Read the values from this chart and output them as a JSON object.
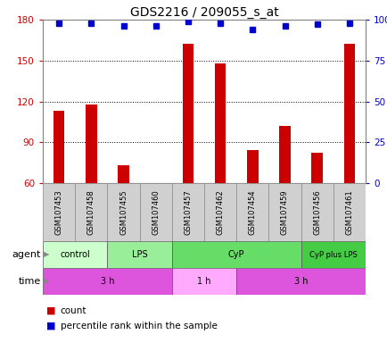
{
  "title": "GDS2216 / 209055_s_at",
  "samples": [
    "GSM107453",
    "GSM107458",
    "GSM107455",
    "GSM107460",
    "GSM107457",
    "GSM107462",
    "GSM107454",
    "GSM107459",
    "GSM107456",
    "GSM107461"
  ],
  "count_values": [
    113,
    118,
    73,
    60,
    162,
    148,
    84,
    102,
    82,
    162
  ],
  "percentile_values": [
    98,
    98,
    96,
    96,
    99,
    98,
    94,
    96,
    97,
    98
  ],
  "ylim_left": [
    60,
    180
  ],
  "ylim_right": [
    0,
    100
  ],
  "yticks_left": [
    60,
    90,
    120,
    150,
    180
  ],
  "yticks_right": [
    0,
    25,
    50,
    75,
    100
  ],
  "ytick_labels_right": [
    "0",
    "25",
    "50",
    "75",
    "100%"
  ],
  "bar_color": "#cc0000",
  "dot_color": "#0000cc",
  "agent_groups": [
    {
      "label": "control",
      "start": 0,
      "end": 2,
      "color": "#ccffcc"
    },
    {
      "label": "LPS",
      "start": 2,
      "end": 4,
      "color": "#99ee99"
    },
    {
      "label": "CyP",
      "start": 4,
      "end": 8,
      "color": "#66dd66"
    },
    {
      "label": "CyP plus LPS",
      "start": 8,
      "end": 10,
      "color": "#44cc44"
    }
  ],
  "time_groups": [
    {
      "label": "3 h",
      "start": 0,
      "end": 4,
      "color": "#dd55dd"
    },
    {
      "label": "1 h",
      "start": 4,
      "end": 6,
      "color": "#ffaaff"
    },
    {
      "label": "3 h",
      "start": 6,
      "end": 10,
      "color": "#dd55dd"
    }
  ],
  "grid_color": "#000000",
  "title_fontsize": 10,
  "bar_width": 0.35
}
